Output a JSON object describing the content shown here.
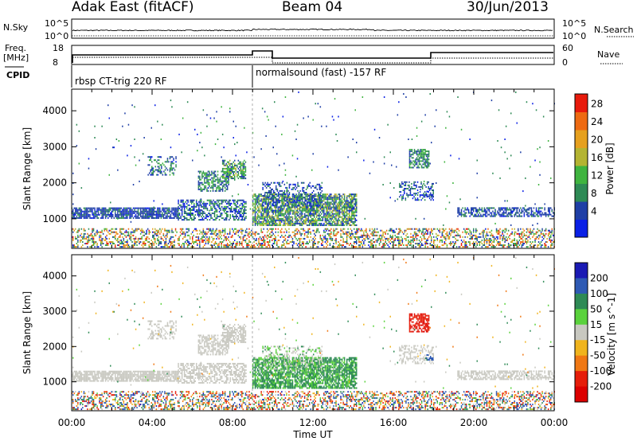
{
  "header": {
    "station": "Adak East (fitACF)",
    "beam": "Beam 04",
    "date": "30/Jun/2013"
  },
  "top_panels": {
    "nsky_label": "N.Sky",
    "nsky_ticks": [
      "10^5",
      "10^0"
    ],
    "nsearch_label": "N.Search",
    "nsearch_ticks": [
      "10^5",
      "10^0"
    ],
    "freq_label_1": "Freq.",
    "freq_label_2": "[MHz]",
    "freq_ticks": [
      "18",
      "8"
    ],
    "nave_label": "Nave",
    "nave_ticks": [
      "60",
      "0"
    ],
    "cpid_label": "CPID",
    "cpid_segments": [
      {
        "start_hour": 0,
        "end_hour": 9,
        "text": "rbsp CT-trig 220 RF"
      },
      {
        "start_hour": 9,
        "end_hour": 24,
        "text": "normalsound (fast) -157 RF"
      }
    ]
  },
  "chart_data": [
    {
      "type": "heatmap",
      "title": "",
      "xlabel": "Time UT",
      "ylabel": "Slant Range [km]",
      "xlim_hours": [
        0,
        24
      ],
      "ylim": [
        180,
        4600
      ],
      "xticks": [
        "00:00",
        "04:00",
        "08:00",
        "12:00",
        "16:00",
        "20:00",
        "00:00"
      ],
      "yticks": [
        1000,
        2000,
        3000,
        4000
      ],
      "colorbar": {
        "label": "Power [dB]",
        "ticks": [
          "28",
          "24",
          "20",
          "16",
          "12",
          "8",
          "4"
        ],
        "range": [
          0,
          30
        ],
        "colors": [
          "#0a20e6",
          "#1f3fa6",
          "#2e8a55",
          "#3fb43f",
          "#b4b432",
          "#e6a01e",
          "#ee6a12",
          "#e81a0c"
        ]
      }
    },
    {
      "type": "heatmap",
      "title": "",
      "xlabel": "Time UT",
      "ylabel": "Slant Range [km]",
      "xlim_hours": [
        0,
        24
      ],
      "ylim": [
        180,
        4600
      ],
      "xticks": [
        "00:00",
        "04:00",
        "08:00",
        "12:00",
        "16:00",
        "20:00",
        "00:00"
      ],
      "yticks": [
        1000,
        2000,
        3000,
        4000
      ],
      "colorbar": {
        "label": "Velocity [m s^-1]",
        "ticks": [
          "200",
          "100",
          "50",
          "15",
          "-15",
          "-50",
          "-100",
          "-200"
        ],
        "colors": [
          "#1a1ab4",
          "#2e5ab4",
          "#2e8a55",
          "#5ad23c",
          "#c8c8c0",
          "#f0b41e",
          "#f07814",
          "#e61e0a",
          "#dc0000"
        ]
      }
    }
  ],
  "xaxis_title": "Time UT",
  "echo_regions": [
    {
      "t0": 0.0,
      "t1": 24.0,
      "r0": 200,
      "r1": 700,
      "density": 0.42,
      "power": [
        2,
        30
      ],
      "vel": [
        -160,
        160
      ]
    },
    {
      "t0": 0.0,
      "t1": 5.3,
      "r0": 1000,
      "r1": 1300,
      "density": 0.8,
      "power": [
        3,
        9
      ],
      "vel": [
        -12,
        12
      ]
    },
    {
      "t0": 5.3,
      "t1": 8.7,
      "r0": 950,
      "r1": 1500,
      "density": 0.55,
      "power": [
        2,
        13
      ],
      "vel": [
        -14,
        14
      ]
    },
    {
      "t0": 6.3,
      "t1": 7.8,
      "r0": 1750,
      "r1": 2300,
      "density": 0.55,
      "power": [
        4,
        16
      ],
      "vel": [
        -14,
        14
      ]
    },
    {
      "t0": 7.5,
      "t1": 8.7,
      "r0": 2100,
      "r1": 2600,
      "density": 0.6,
      "power": [
        5,
        18
      ],
      "vel": [
        -14,
        14
      ]
    },
    {
      "t0": 3.8,
      "t1": 5.2,
      "r0": 2200,
      "r1": 2700,
      "density": 0.35,
      "power": [
        3,
        14
      ],
      "vel": [
        -12,
        12
      ]
    },
    {
      "t0": 9.0,
      "t1": 14.2,
      "r0": 800,
      "r1": 1700,
      "density": 0.75,
      "power": [
        3,
        20
      ],
      "vel": [
        18,
        60
      ]
    },
    {
      "t0": 9.5,
      "t1": 12.5,
      "r0": 1300,
      "r1": 2000,
      "density": 0.35,
      "power": [
        2,
        10
      ],
      "vel": [
        -12,
        40
      ]
    },
    {
      "t0": 16.3,
      "t1": 18.0,
      "r0": 1500,
      "r1": 2000,
      "density": 0.35,
      "power": [
        2,
        12
      ],
      "vel": [
        -12,
        12
      ]
    },
    {
      "t0": 16.8,
      "t1": 17.8,
      "r0": 2400,
      "r1": 2900,
      "density": 0.65,
      "power": [
        5,
        16
      ],
      "vel": [
        -230,
        -110
      ]
    },
    {
      "t0": 17.6,
      "t1": 18.0,
      "r0": 1600,
      "r1": 1750,
      "density": 0.5,
      "power": [
        2,
        8
      ],
      "vel": [
        60,
        150
      ]
    },
    {
      "t0": 19.2,
      "t1": 24.0,
      "r0": 1050,
      "r1": 1300,
      "density": 0.6,
      "power": [
        3,
        10
      ],
      "vel": [
        -12,
        12
      ]
    },
    {
      "t0": 0.0,
      "t1": 24.0,
      "r0": 800,
      "r1": 4500,
      "density": 0.008,
      "power": [
        2,
        14
      ],
      "vel": [
        -60,
        60
      ]
    }
  ]
}
